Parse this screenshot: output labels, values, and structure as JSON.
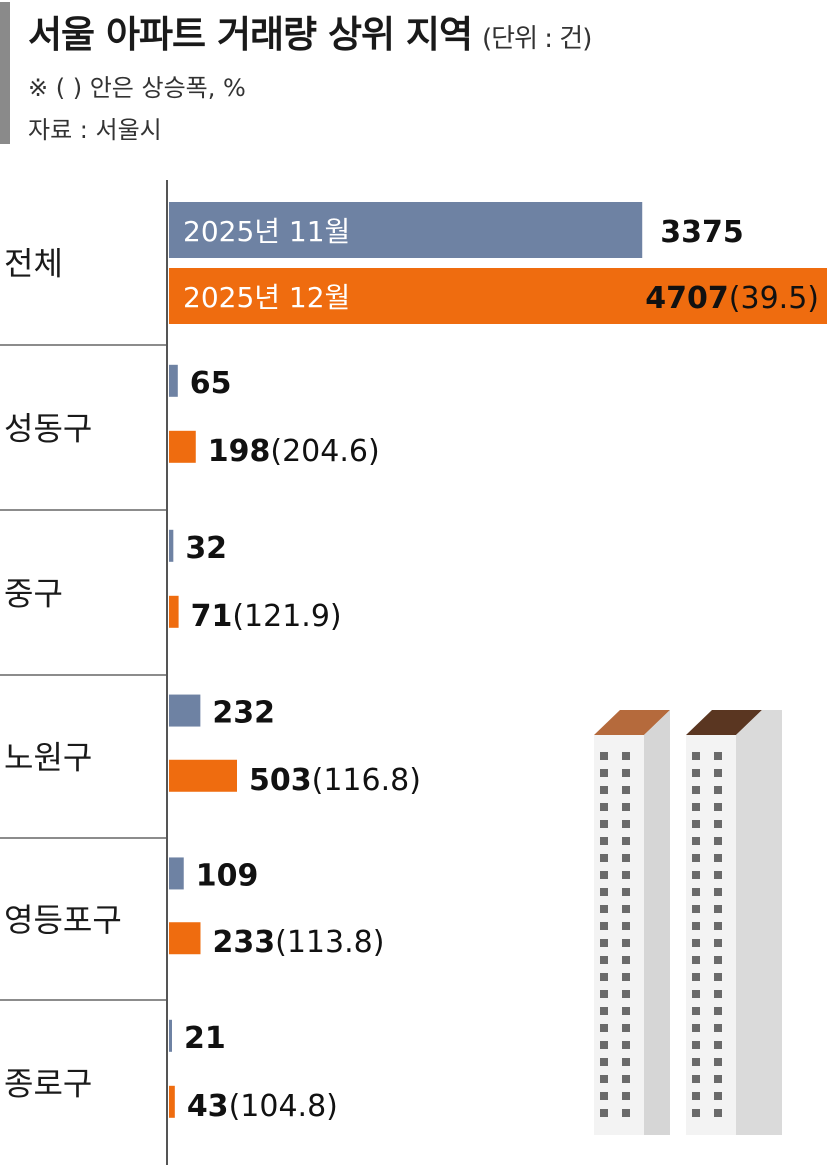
{
  "header": {
    "title": "서울 아파트 거래량 상위 지역",
    "unit": "(단위 : 건)",
    "note": "※ (  ) 안은 상승폭, %",
    "source": "자료 : 서울시"
  },
  "chart_data": {
    "type": "bar",
    "orientation": "horizontal",
    "categories": [
      "전체",
      "성동구",
      "중구",
      "노원구",
      "영등포구",
      "종로구"
    ],
    "series": [
      {
        "name": "2025년 11월",
        "color": "#6e82a3",
        "values": [
          3375,
          65,
          32,
          232,
          109,
          21
        ]
      },
      {
        "name": "2025년 12월",
        "color": "#ef6c0f",
        "values": [
          4707,
          198,
          71,
          503,
          233,
          43
        ],
        "growth_pct": [
          "39.5",
          "204.6",
          "121.9",
          "116.8",
          "113.8",
          "104.8"
        ]
      }
    ],
    "legend_placement": "inside-bars",
    "grid": false
  }
}
